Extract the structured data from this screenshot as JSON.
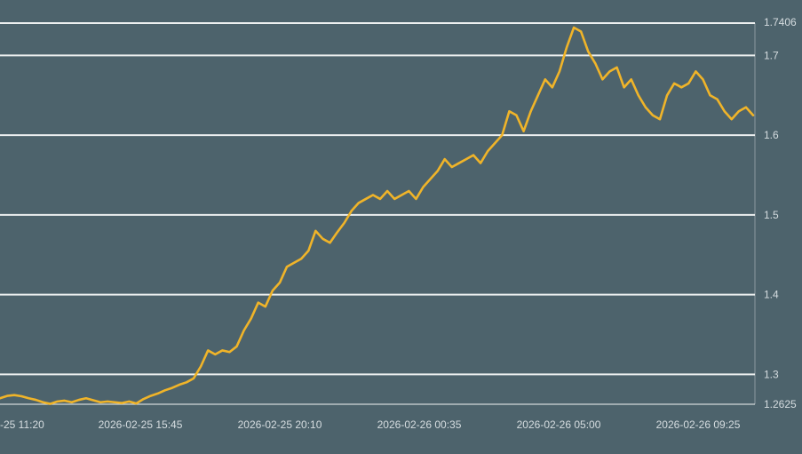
{
  "chart_data": {
    "type": "line",
    "title": "",
    "xlabel": "",
    "ylabel": "",
    "x_tick_labels": [
      "-25 11:20",
      "2026-02-25 15:45",
      "2026-02-25 20:10",
      "2026-02-26 00:35",
      "2026-02-26 05:00",
      "2026-02-26 09:25"
    ],
    "y_ticks": [
      "1.2625",
      "1.3",
      "1.4",
      "1.5",
      "1.6",
      "1.7",
      "1.7406"
    ],
    "ylim": [
      1.2625,
      1.7406
    ],
    "grid": true,
    "legend": "none",
    "colors": {
      "background": "#4d636c",
      "line": "#f0b429",
      "grid": "#ffffff",
      "label": "#d6dde0"
    },
    "series": [
      {
        "values": [
          1.27,
          1.273,
          1.274,
          1.2725,
          1.27,
          1.268,
          1.265,
          1.263,
          1.266,
          1.267,
          1.265,
          1.268,
          1.27,
          1.2675,
          1.265,
          1.266,
          1.265,
          1.264,
          1.266,
          1.2635,
          1.269,
          1.273,
          1.276,
          1.28,
          1.283,
          1.287,
          1.29,
          1.295,
          1.31,
          1.33,
          1.325,
          1.33,
          1.328,
          1.335,
          1.355,
          1.37,
          1.39,
          1.385,
          1.405,
          1.415,
          1.435,
          1.44,
          1.445,
          1.455,
          1.48,
          1.47,
          1.465,
          1.478,
          1.49,
          1.505,
          1.515,
          1.52,
          1.525,
          1.52,
          1.53,
          1.52,
          1.525,
          1.53,
          1.52,
          1.535,
          1.545,
          1.555,
          1.57,
          1.56,
          1.565,
          1.57,
          1.575,
          1.565,
          1.58,
          1.59,
          1.6,
          1.63,
          1.625,
          1.605,
          1.63,
          1.65,
          1.67,
          1.66,
          1.68,
          1.71,
          1.735,
          1.73,
          1.705,
          1.69,
          1.67,
          1.68,
          1.685,
          1.66,
          1.67,
          1.65,
          1.635,
          1.625,
          1.62,
          1.65,
          1.665,
          1.66,
          1.665,
          1.68,
          1.67,
          1.65,
          1.645,
          1.63,
          1.62,
          1.63,
          1.635,
          1.625
        ]
      }
    ]
  }
}
